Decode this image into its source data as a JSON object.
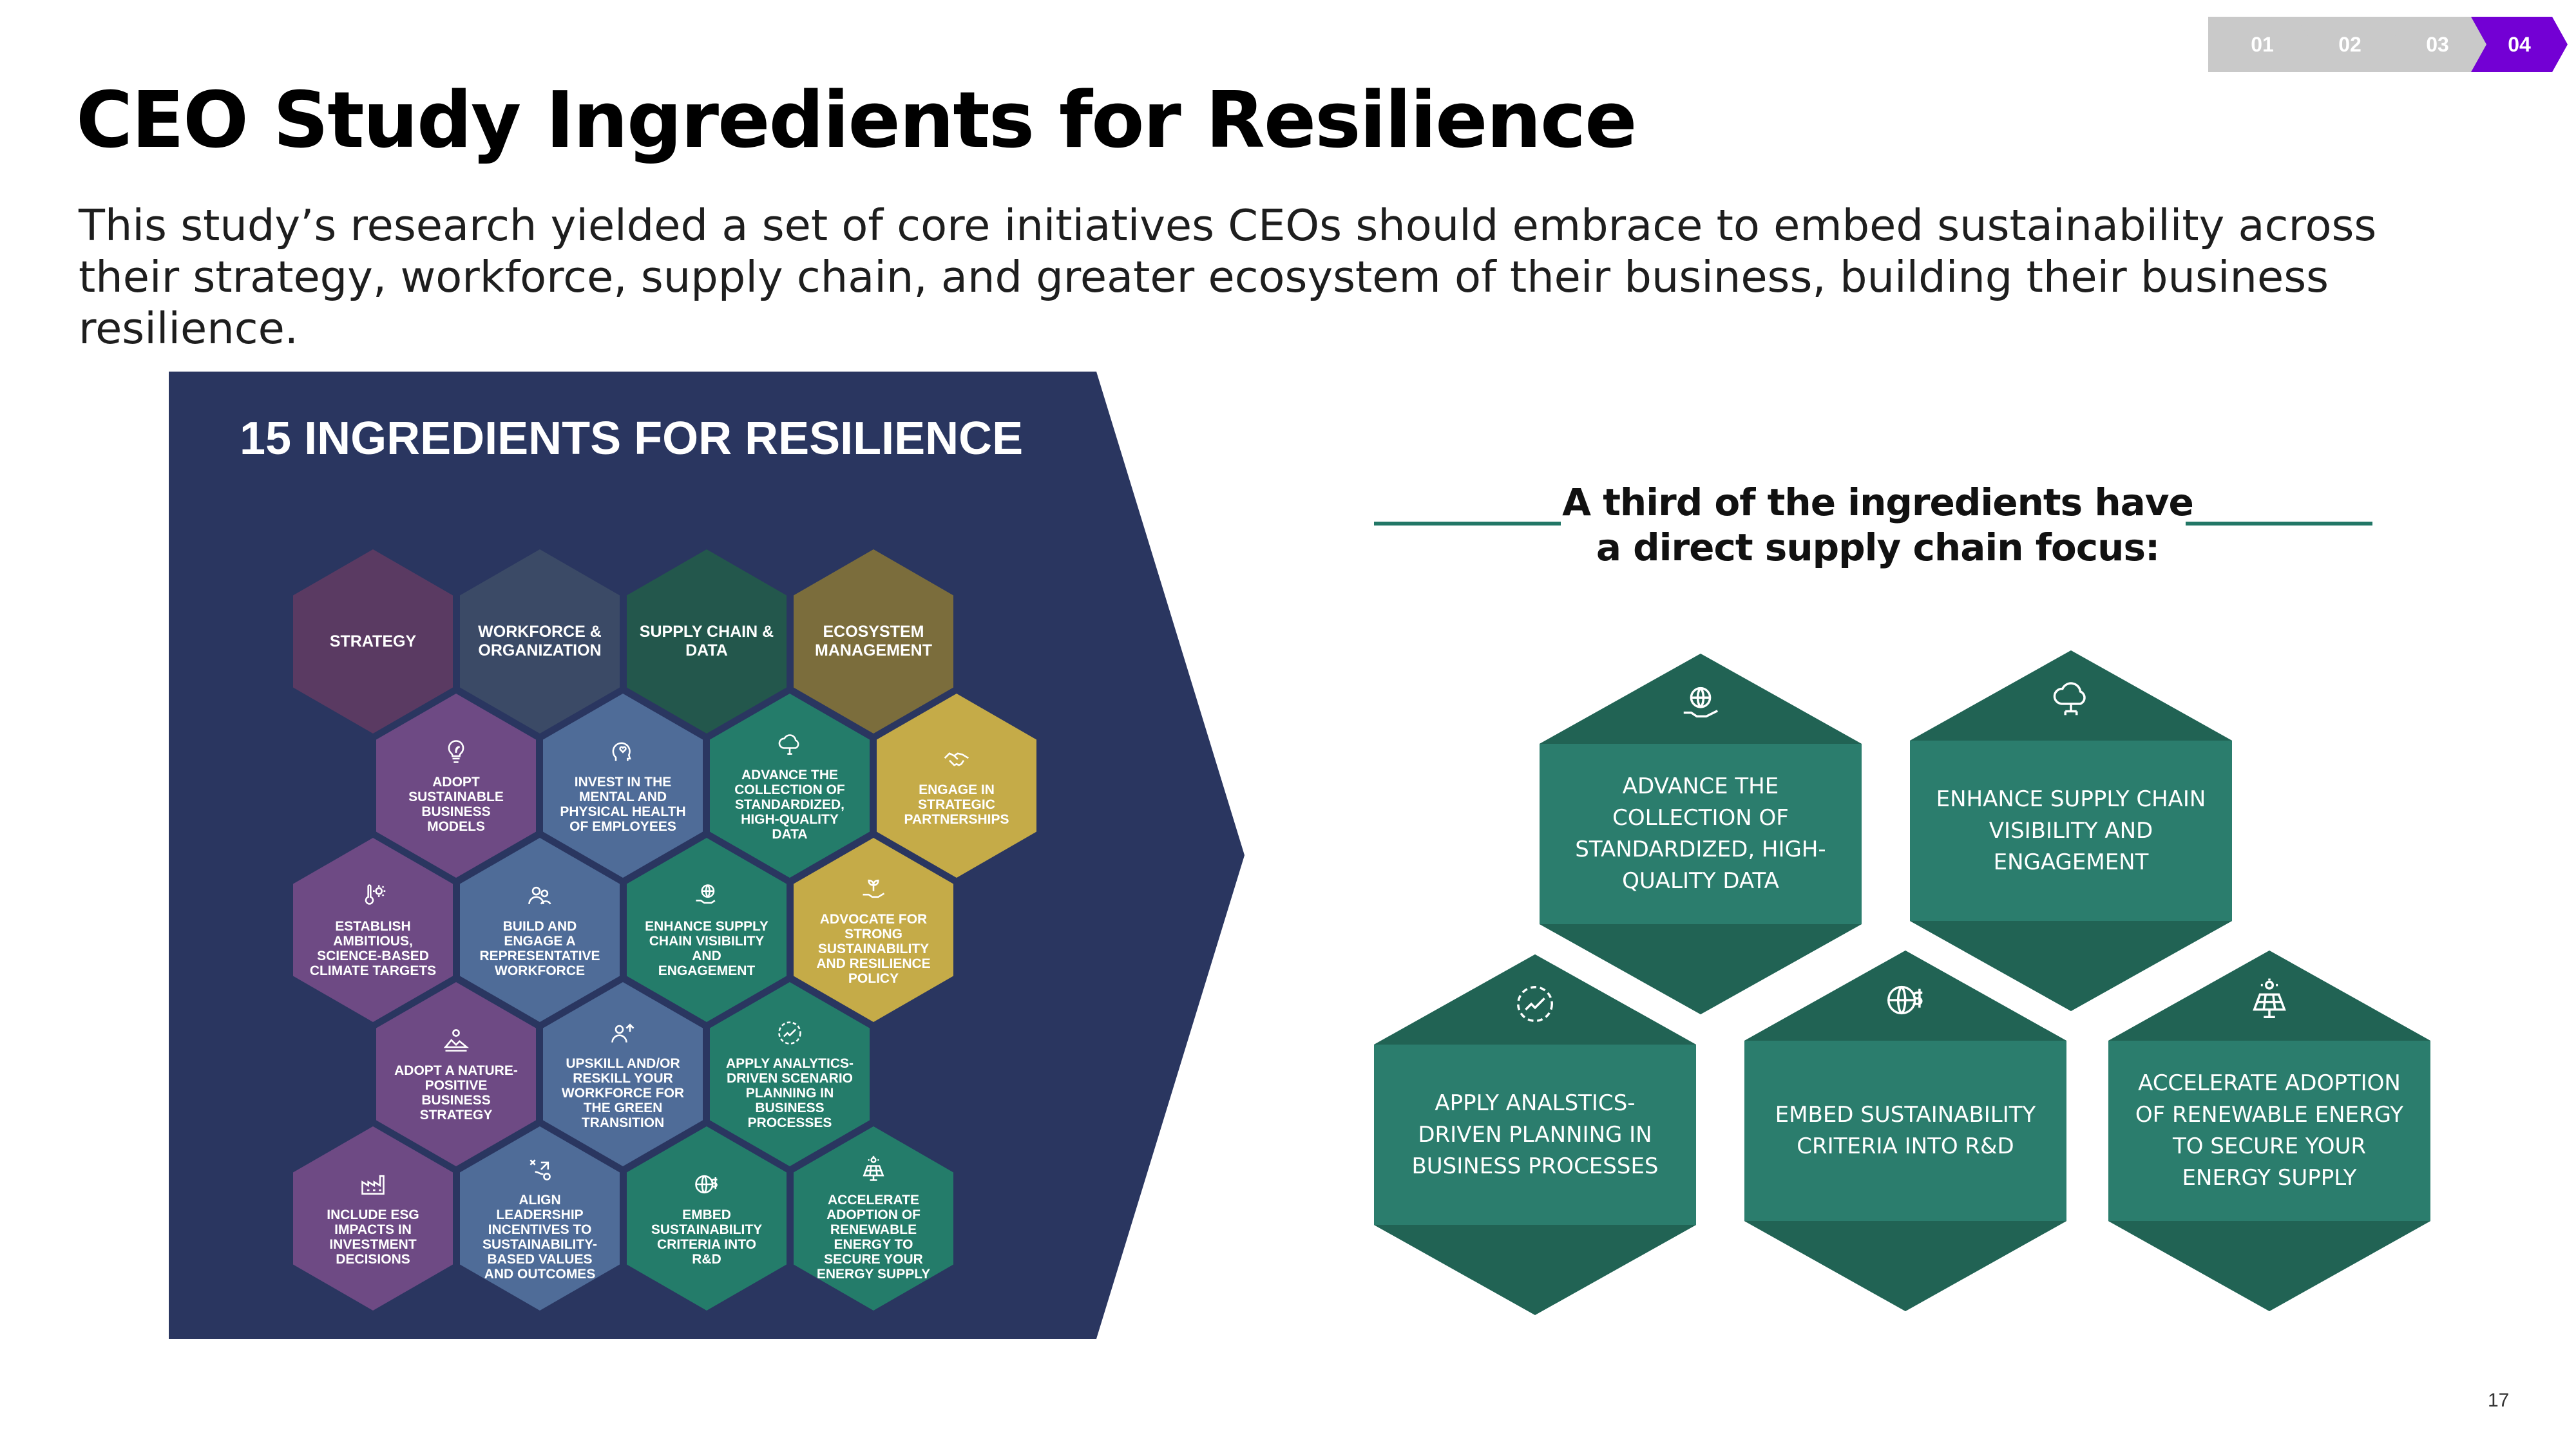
{
  "nav": {
    "steps": [
      {
        "label": "01",
        "active": false
      },
      {
        "label": "02",
        "active": false
      },
      {
        "label": "03",
        "active": false
      },
      {
        "label": "04",
        "active": true
      }
    ]
  },
  "title": "CEO Study Ingredients for Resilience",
  "subtitle": "This study’s research yielded a set of core initiatives CEOs should embrace to embed sustainability across their strategy, workforce, supply chain, and greater ecosystem of their business, building their business resilience.",
  "panel": {
    "title": "15 INGREDIENTS FOR RESILIENCE",
    "headers": [
      {
        "label": "STRATEGY",
        "color": "#5a3a62"
      },
      {
        "label": "WORKFORCE & ORGANIZATION",
        "color": "#3b4a66"
      },
      {
        "label": "SUPPLY CHAIN & DATA",
        "color": "#23574c"
      },
      {
        "label": "ECOSYSTEM MANAGEMENT",
        "color": "#7b6d3c"
      }
    ],
    "ingredients": [
      {
        "label": "ADOPT SUSTAINABLE BUSINESS MODELS",
        "icon": "lightbulb-leaf-icon",
        "color": "#6e4a84"
      },
      {
        "label": "INVEST IN THE MENTAL AND PHYSICAL HEALTH OF EMPLOYEES",
        "icon": "heart-head-icon",
        "color": "#4f6c98"
      },
      {
        "label": "ADVANCE THE COLLECTION OF STANDARDIZED, HIGH-QUALITY DATA",
        "icon": "cloud-data-icon",
        "color": "#247c6a"
      },
      {
        "label": "ENGAGE IN STRATEGIC PARTNERSHIPS",
        "icon": "handshake-icon",
        "color": "#c5ab48"
      },
      {
        "label": "ESTABLISH AMBITIOUS, SCIENCE-BASED CLIMATE TARGETS",
        "icon": "thermometer-sun-icon",
        "color": "#6e4a84"
      },
      {
        "label": "BUILD AND ENGAGE A REPRESENTATIVE WORKFORCE",
        "icon": "people-icon",
        "color": "#4f6c98"
      },
      {
        "label": "ENHANCE SUPPLY CHAIN VISIBILITY AND ENGAGEMENT",
        "icon": "globe-hand-icon",
        "color": "#247c6a"
      },
      {
        "label": "ADVOCATE FOR STRONG SUSTAINABILITY AND RESILIENCE POLICY",
        "icon": "plant-hand-icon",
        "color": "#c5ab48"
      },
      {
        "label": "ADOPT A NATURE-POSITIVE BUSINESS STRATEGY",
        "icon": "landscape-icon",
        "color": "#6e4a84"
      },
      {
        "label": "UPSKILL AND/OR RESKILL YOUR WORKFORCE FOR THE GREEN TRANSITION",
        "icon": "worker-growth-icon",
        "color": "#4f6c98"
      },
      {
        "label": "APPLY ANALYTICS-DRIVEN SCENARIO PLANNING IN BUSINESS PROCESSES",
        "icon": "chart-gauge-icon",
        "color": "#247c6a"
      },
      {
        "label": "INCLUDE ESG IMPACTS IN INVESTMENT DECISIONS",
        "icon": "factory-icon",
        "color": "#6e4a84"
      },
      {
        "label": "ALIGN LEADERSHIP INCENTIVES TO SUSTAINABILITY-BASED VALUES AND OUTCOMES",
        "icon": "strategy-arrow-icon",
        "color": "#4f6c98"
      },
      {
        "label": "EMBED SUSTAINABILITY CRITERIA INTO R&D",
        "icon": "globe-dollar-icon",
        "color": "#247c6a"
      },
      {
        "label": "ACCELERATE ADOPTION OF RENEWABLE ENERGY TO SECURE YOUR ENERGY SUPPLY",
        "icon": "solar-panel-icon",
        "color": "#247c6a"
      }
    ]
  },
  "focus": {
    "title_line1": "A third of the ingredients have",
    "title_line2": "a direct supply chain focus:",
    "items": [
      {
        "label": "ADVANCE THE COLLECTION OF STANDARDIZED, HIGH-QUALITY DATA",
        "icon": "data-hand-icon"
      },
      {
        "label": "ENHANCE SUPPLY CHAIN VISIBILITY AND ENGAGEMENT",
        "icon": "cloud-network-icon"
      },
      {
        "label": "APPLY ANALSTICS-DRIVEN PLANNING IN BUSINESS PROCESSES",
        "icon": "chart-gauge-icon"
      },
      {
        "label": "EMBED SUSTAINABILITY CRITERIA INTO R&D",
        "icon": "globe-dollar-icon"
      },
      {
        "label": "ACCELERATE ADOPTION OF RENEWABLE ENERGY TO SECURE YOUR ENERGY SUPPLY",
        "icon": "solar-panel-icon"
      }
    ]
  },
  "page_number": "17"
}
